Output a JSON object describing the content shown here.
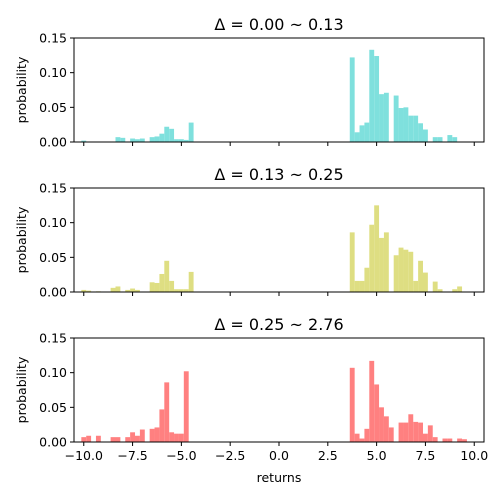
{
  "chart_data": [
    {
      "type": "bar",
      "title": "Δ = 0.00 ~ 0.13",
      "ylabel": "probability",
      "xlabel": "",
      "color": "#7fe0dd",
      "xlim": [
        -10.5,
        10.5
      ],
      "ylim": [
        0,
        0.15
      ],
      "yticks": [
        "0.00",
        "0.05",
        "0.10",
        "0.15"
      ],
      "bin_width": 0.25,
      "bins": [
        [
          -10.0,
          0.002
        ],
        [
          -8.25,
          0.007
        ],
        [
          -8.0,
          0.006
        ],
        [
          -7.5,
          0.005
        ],
        [
          -7.25,
          0.004
        ],
        [
          -7.0,
          0.005
        ],
        [
          -6.5,
          0.007
        ],
        [
          -6.25,
          0.008
        ],
        [
          -6.0,
          0.012
        ],
        [
          -5.75,
          0.022
        ],
        [
          -5.5,
          0.019
        ],
        [
          -5.25,
          0.004
        ],
        [
          -5.0,
          0.004
        ],
        [
          -4.75,
          0.003
        ],
        [
          -4.5,
          0.028
        ],
        [
          3.75,
          0.122
        ],
        [
          4.0,
          0.014
        ],
        [
          4.25,
          0.024
        ],
        [
          4.5,
          0.028
        ],
        [
          4.75,
          0.133
        ],
        [
          5.0,
          0.124
        ],
        [
          5.25,
          0.069
        ],
        [
          5.5,
          0.071
        ],
        [
          6.0,
          0.067
        ],
        [
          6.25,
          0.049
        ],
        [
          6.5,
          0.05
        ],
        [
          6.75,
          0.038
        ],
        [
          7.0,
          0.038
        ],
        [
          7.25,
          0.027
        ],
        [
          7.5,
          0.018
        ],
        [
          8.0,
          0.007
        ],
        [
          8.25,
          0.007
        ],
        [
          8.75,
          0.01
        ],
        [
          9.0,
          0.007
        ]
      ]
    },
    {
      "type": "bar",
      "title": "Δ = 0.13 ~ 0.25",
      "ylabel": "probability",
      "xlabel": "",
      "color": "#dede82",
      "xlim": [
        -10.5,
        10.5
      ],
      "ylim": [
        0,
        0.15
      ],
      "yticks": [
        "0.00",
        "0.05",
        "0.10",
        "0.15"
      ],
      "bin_width": 0.25,
      "bins": [
        [
          -10.0,
          0.003
        ],
        [
          -9.75,
          0.002
        ],
        [
          -9.25,
          0.001
        ],
        [
          -8.5,
          0.006
        ],
        [
          -8.25,
          0.008
        ],
        [
          -7.75,
          0.003
        ],
        [
          -7.5,
          0.005
        ],
        [
          -7.25,
          0.003
        ],
        [
          -6.5,
          0.014
        ],
        [
          -6.25,
          0.013
        ],
        [
          -6.0,
          0.026
        ],
        [
          -5.75,
          0.045
        ],
        [
          -5.5,
          0.016
        ],
        [
          -5.25,
          0.004
        ],
        [
          -5.0,
          0.004
        ],
        [
          -4.75,
          0.004
        ],
        [
          -4.5,
          0.029
        ],
        [
          3.75,
          0.086
        ],
        [
          4.0,
          0.016
        ],
        [
          4.25,
          0.016
        ],
        [
          4.5,
          0.035
        ],
        [
          4.75,
          0.097
        ],
        [
          5.0,
          0.125
        ],
        [
          5.25,
          0.078
        ],
        [
          5.5,
          0.086
        ],
        [
          6.0,
          0.053
        ],
        [
          6.25,
          0.064
        ],
        [
          6.5,
          0.061
        ],
        [
          6.75,
          0.058
        ],
        [
          7.0,
          0.016
        ],
        [
          7.25,
          0.045
        ],
        [
          7.5,
          0.028
        ],
        [
          8.0,
          0.015
        ],
        [
          8.25,
          0.004
        ],
        [
          9.0,
          0.004
        ],
        [
          9.25,
          0.008
        ]
      ]
    },
    {
      "type": "bar",
      "title": "Δ = 0.25 ~ 2.76",
      "ylabel": "probability",
      "xlabel": "returns",
      "color": "#ff8080",
      "xlim": [
        -10.5,
        10.5
      ],
      "ylim": [
        0,
        0.15
      ],
      "yticks": [
        "0.00",
        "0.05",
        "0.10",
        "0.15"
      ],
      "xticks": [
        "−10.0",
        "−7.5",
        "−5.0",
        "−2.5",
        "0.0",
        "2.5",
        "5.0",
        "7.5",
        "10.0"
      ],
      "bin_width": 0.25,
      "bins": [
        [
          -10.0,
          0.007
        ],
        [
          -9.75,
          0.009
        ],
        [
          -9.25,
          0.009
        ],
        [
          -8.5,
          0.007
        ],
        [
          -8.25,
          0.007
        ],
        [
          -7.75,
          0.007
        ],
        [
          -7.5,
          0.014
        ],
        [
          -7.25,
          0.009
        ],
        [
          -7.0,
          0.018
        ],
        [
          -6.5,
          0.019
        ],
        [
          -6.25,
          0.021
        ],
        [
          -6.0,
          0.047
        ],
        [
          -5.75,
          0.086
        ],
        [
          -5.5,
          0.014
        ],
        [
          -5.25,
          0.012
        ],
        [
          -5.0,
          0.012
        ],
        [
          -4.75,
          0.102
        ],
        [
          3.75,
          0.107
        ],
        [
          4.0,
          0.012
        ],
        [
          4.25,
          0.005
        ],
        [
          4.5,
          0.019
        ],
        [
          4.75,
          0.117
        ],
        [
          5.0,
          0.083
        ],
        [
          5.25,
          0.05
        ],
        [
          5.5,
          0.037
        ],
        [
          5.75,
          0.021
        ],
        [
          6.25,
          0.028
        ],
        [
          6.5,
          0.028
        ],
        [
          6.75,
          0.04
        ],
        [
          7.0,
          0.029
        ],
        [
          7.25,
          0.028
        ],
        [
          7.5,
          0.012
        ],
        [
          7.75,
          0.024
        ],
        [
          8.0,
          0.007
        ],
        [
          8.5,
          0.005
        ],
        [
          8.75,
          0.005
        ],
        [
          9.25,
          0.005
        ],
        [
          9.5,
          0.004
        ]
      ]
    }
  ]
}
